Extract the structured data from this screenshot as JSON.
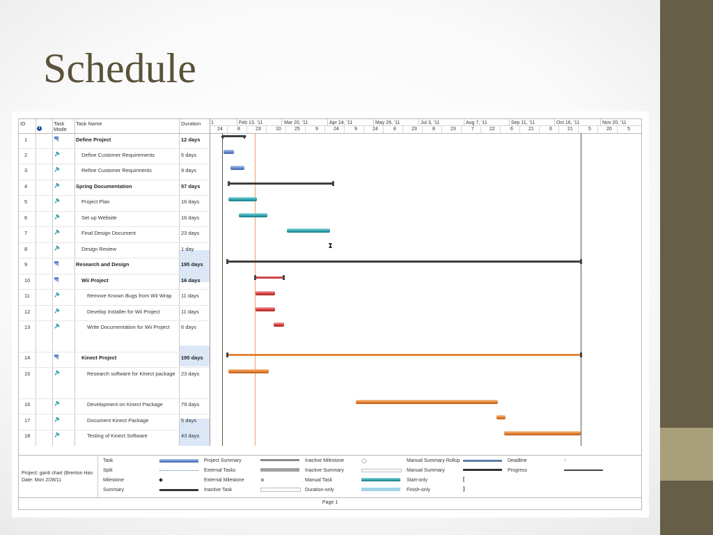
{
  "slide": {
    "title": "Schedule"
  },
  "columns": {
    "id": "ID",
    "info_icon": "i",
    "mode_line1": "Task",
    "mode_line2": "Mode",
    "name": "Task Name",
    "duration": "Duration"
  },
  "timeline": {
    "top": [
      "1",
      "Feb 13, '11",
      "Mar 20, '11",
      "Apr 24, '11",
      "May 29, '11",
      "Jul 3, '11",
      "Aug 7, '11",
      "Sep 11, '11",
      "Oct 16, '11",
      "Nov 20, '11"
    ],
    "bottom": [
      "24",
      "8",
      "23",
      "10",
      "25",
      "9",
      "24",
      "9",
      "24",
      "8",
      "23",
      "8",
      "23",
      "7",
      "22",
      "6",
      "21",
      "6",
      "21",
      "5",
      "20",
      "5"
    ]
  },
  "chart_data": {
    "type": "gantt",
    "title": "",
    "x_axis_start": "2011-01-24",
    "x_axis_end": "2011-12-05",
    "status_date": "2011-02-28",
    "tasks": [
      {
        "id": "1",
        "name": "Define Project",
        "duration": "12 days",
        "summary": true,
        "mode": "auto"
      },
      {
        "id": "2",
        "name": "Define Customer Requirements",
        "duration": "6 days",
        "summary": false,
        "mode": "manual"
      },
      {
        "id": "3",
        "name": "Refine Customer Requirments",
        "duration": "9 days",
        "summary": false,
        "mode": "manual"
      },
      {
        "id": "4",
        "name": "Spring Documentation",
        "duration": "57 days",
        "summary": true,
        "mode": "manual"
      },
      {
        "id": "5",
        "name": "Project Plan",
        "duration": "16 days",
        "summary": false,
        "mode": "manual"
      },
      {
        "id": "6",
        "name": "Set up Website",
        "duration": "16 days",
        "summary": false,
        "mode": "manual"
      },
      {
        "id": "7",
        "name": "Final Design Document",
        "duration": "23 days",
        "summary": false,
        "mode": "manual"
      },
      {
        "id": "8",
        "name": "Design Review",
        "duration": "1 day",
        "summary": false,
        "mode": "manual"
      },
      {
        "id": "9",
        "name": "Research and Design",
        "duration": "195 days",
        "summary": true,
        "mode": "auto"
      },
      {
        "id": "10",
        "name": "Wii Project",
        "duration": "16 days",
        "summary": true,
        "mode": "auto"
      },
      {
        "id": "11",
        "name": "Remove Known Bugs from Wii Wrap",
        "duration": "11 days",
        "summary": false,
        "mode": "manual"
      },
      {
        "id": "12",
        "name": "Develop Installer for Wii Project",
        "duration": "11 days",
        "summary": false,
        "mode": "manual"
      },
      {
        "id": "13",
        "name": "Write Documentation for Wii Project",
        "duration": "6 days",
        "summary": false,
        "mode": "manual"
      },
      {
        "id": "14",
        "name": "Kinect Project",
        "duration": "195 days",
        "summary": true,
        "mode": "auto"
      },
      {
        "id": "15",
        "name": "Research software for Kinect package",
        "duration": "23 days",
        "summary": false,
        "mode": "manual"
      },
      {
        "id": "16",
        "name": "Development on Kinect Package",
        "duration": "79 days",
        "summary": false,
        "mode": "manual"
      },
      {
        "id": "17",
        "name": "Document Kinect Package",
        "duration": "5 days",
        "summary": false,
        "mode": "manual"
      },
      {
        "id": "18",
        "name": "Testing of Kinect Software",
        "duration": "43 days",
        "summary": false,
        "mode": "manual"
      }
    ]
  },
  "legend": {
    "project_line1": "Project: gantt chart (Brenton Han",
    "project_line2": "Date: Mon 2/28/11",
    "items": [
      "Task",
      "Split",
      "Milestone",
      "Summary",
      "Project Summary",
      "External Tasks",
      "External Milestone",
      "Inactive Task",
      "Inactive Milestone",
      "Inactive Summary",
      "Manual Task",
      "Duration-only",
      "Manual Summary Rollup",
      "Manual Summary",
      "Start-only",
      "Finish-only",
      "Deadline",
      "Progress"
    ]
  },
  "footer": {
    "page": "Page 1"
  },
  "colors": {
    "sidebar": "#675e47",
    "accent_block": "#a7a07b",
    "title": "#5a523b",
    "task_blue": "#5f86c8",
    "task_teal": "#2b9ea6",
    "task_red": "#d23c3c",
    "task_orange": "#e07a2a",
    "summary": "#3c3c3c",
    "status_line": "#f0a060",
    "duration_highlight": "#dbe7f6"
  }
}
